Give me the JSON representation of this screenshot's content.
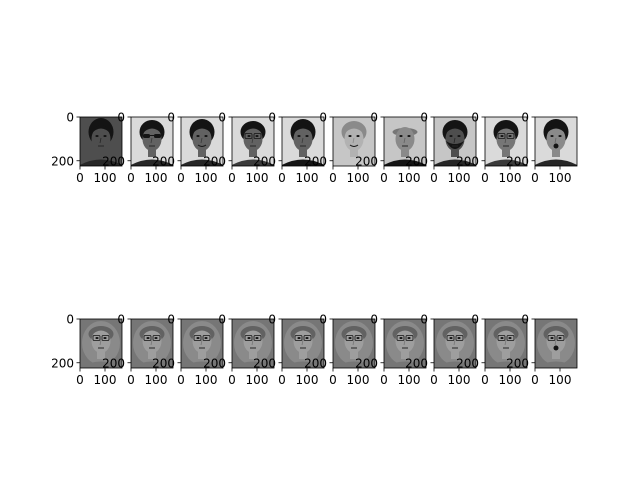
{
  "figure": {
    "background": "#ffffff",
    "axis_color": "#000000",
    "gray_levels": [
      "#141414",
      "#262626",
      "#3a3a3a",
      "#4e4e4e",
      "#626262",
      "#767676",
      "#8a8a8a",
      "#9e9e9e",
      "#b2b2b2",
      "#c6c6c6",
      "#dadada"
    ]
  },
  "chart_data": [
    {
      "type": "image-grid",
      "row": "original-faces",
      "panels": [
        {
          "image": "face-dark-background-short-hair",
          "xlim": [
            0,
            168
          ],
          "ylim": [
            0,
            224
          ],
          "xticks": [
            "0",
            "100"
          ],
          "yticks": [
            "0",
            "200"
          ]
        },
        {
          "image": "face-dark-sunglasses",
          "xlim": [
            0,
            168
          ],
          "ylim": [
            0,
            224
          ],
          "xticks": [
            "0",
            "100"
          ],
          "yticks": [
            "0",
            "200"
          ]
        },
        {
          "image": "face-dark-hair-smile",
          "xlim": [
            0,
            168
          ],
          "ylim": [
            0,
            224
          ],
          "xticks": [
            "0",
            "100"
          ],
          "yticks": [
            "0",
            "200"
          ]
        },
        {
          "image": "face-glasses-light-background",
          "xlim": [
            0,
            168
          ],
          "ylim": [
            0,
            224
          ],
          "xticks": [
            "0",
            "100"
          ],
          "yticks": [
            "0",
            "200"
          ]
        },
        {
          "image": "face-dark-hair-dark-shirt",
          "xlim": [
            0,
            168
          ],
          "ylim": [
            0,
            224
          ],
          "xticks": [
            "0",
            "100"
          ],
          "yticks": [
            "0",
            "200"
          ]
        },
        {
          "image": "face-light-hair-light-shirt",
          "xlim": [
            0,
            168
          ],
          "ylim": [
            0,
            224
          ],
          "xticks": [
            "0",
            "100"
          ],
          "yticks": [
            "0",
            "200"
          ]
        },
        {
          "image": "face-bald-dark-jacket",
          "xlim": [
            0,
            168
          ],
          "ylim": [
            0,
            224
          ],
          "xticks": [
            "0",
            "100"
          ],
          "yticks": [
            "0",
            "200"
          ]
        },
        {
          "image": "face-beard-dark-hair",
          "xlim": [
            0,
            168
          ],
          "ylim": [
            0,
            224
          ],
          "xticks": [
            "0",
            "100"
          ],
          "yticks": [
            "0",
            "200"
          ]
        },
        {
          "image": "face-glasses-dark-hair",
          "xlim": [
            0,
            168
          ],
          "ylim": [
            0,
            224
          ],
          "xticks": [
            "0",
            "100"
          ],
          "yticks": [
            "0",
            "200"
          ]
        },
        {
          "image": "face-surprised-open-mouth",
          "xlim": [
            0,
            168
          ],
          "ylim": [
            0,
            224
          ],
          "xticks": [
            "0",
            "100"
          ],
          "yticks": [
            "0",
            "200"
          ]
        }
      ]
    },
    {
      "type": "image-grid",
      "row": "reconstructed-faces",
      "panels": [
        {
          "image": "mean-face-glasses",
          "xlim": [
            0,
            168
          ],
          "ylim": [
            0,
            224
          ],
          "xticks": [
            "0",
            "100"
          ],
          "yticks": [
            "0",
            "200"
          ]
        },
        {
          "image": "mean-face-glasses",
          "xlim": [
            0,
            168
          ],
          "ylim": [
            0,
            224
          ],
          "xticks": [
            "0",
            "100"
          ],
          "yticks": [
            "0",
            "200"
          ]
        },
        {
          "image": "mean-face-glasses",
          "xlim": [
            0,
            168
          ],
          "ylim": [
            0,
            224
          ],
          "xticks": [
            "0",
            "100"
          ],
          "yticks": [
            "0",
            "200"
          ]
        },
        {
          "image": "mean-face-glasses",
          "xlim": [
            0,
            168
          ],
          "ylim": [
            0,
            224
          ],
          "xticks": [
            "0",
            "100"
          ],
          "yticks": [
            "0",
            "200"
          ]
        },
        {
          "image": "mean-face-glasses",
          "xlim": [
            0,
            168
          ],
          "ylim": [
            0,
            224
          ],
          "xticks": [
            "0",
            "100"
          ],
          "yticks": [
            "0",
            "200"
          ]
        },
        {
          "image": "mean-face-glasses",
          "xlim": [
            0,
            168
          ],
          "ylim": [
            0,
            224
          ],
          "xticks": [
            "0",
            "100"
          ],
          "yticks": [
            "0",
            "200"
          ]
        },
        {
          "image": "mean-face-glasses",
          "xlim": [
            0,
            168
          ],
          "ylim": [
            0,
            224
          ],
          "xticks": [
            "0",
            "100"
          ],
          "yticks": [
            "0",
            "200"
          ]
        },
        {
          "image": "mean-face-glasses",
          "xlim": [
            0,
            168
          ],
          "ylim": [
            0,
            224
          ],
          "xticks": [
            "0",
            "100"
          ],
          "yticks": [
            "0",
            "200"
          ]
        },
        {
          "image": "mean-face-glasses",
          "xlim": [
            0,
            168
          ],
          "ylim": [
            0,
            224
          ],
          "xticks": [
            "0",
            "100"
          ],
          "yticks": [
            "0",
            "200"
          ]
        },
        {
          "image": "mean-face-open-mouth",
          "xlim": [
            0,
            168
          ],
          "ylim": [
            0,
            224
          ],
          "xticks": [
            "0",
            "100"
          ],
          "yticks": [
            "0",
            "200"
          ]
        }
      ]
    }
  ]
}
